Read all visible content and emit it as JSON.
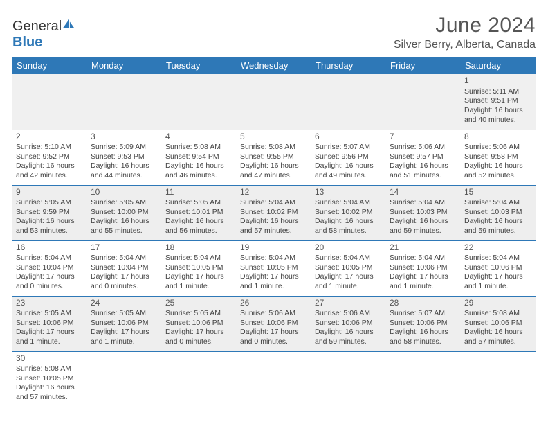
{
  "logo": {
    "word1": "General",
    "word2": "Blue"
  },
  "title": "June 2024",
  "location": "Silver Berry, Alberta, Canada",
  "header_bg": "#2e78b7",
  "header_fg": "#ffffff",
  "shade_bg": "#eeeeee",
  "border_color": "#2e78b7",
  "days": [
    "Sunday",
    "Monday",
    "Tuesday",
    "Wednesday",
    "Thursday",
    "Friday",
    "Saturday"
  ],
  "weeks": [
    [
      null,
      null,
      null,
      null,
      null,
      null,
      {
        "n": "1",
        "sr": "Sunrise: 5:11 AM",
        "ss": "Sunset: 9:51 PM",
        "d1": "Daylight: 16 hours",
        "d2": "and 40 minutes."
      }
    ],
    [
      {
        "n": "2",
        "sr": "Sunrise: 5:10 AM",
        "ss": "Sunset: 9:52 PM",
        "d1": "Daylight: 16 hours",
        "d2": "and 42 minutes."
      },
      {
        "n": "3",
        "sr": "Sunrise: 5:09 AM",
        "ss": "Sunset: 9:53 PM",
        "d1": "Daylight: 16 hours",
        "d2": "and 44 minutes."
      },
      {
        "n": "4",
        "sr": "Sunrise: 5:08 AM",
        "ss": "Sunset: 9:54 PM",
        "d1": "Daylight: 16 hours",
        "d2": "and 46 minutes."
      },
      {
        "n": "5",
        "sr": "Sunrise: 5:08 AM",
        "ss": "Sunset: 9:55 PM",
        "d1": "Daylight: 16 hours",
        "d2": "and 47 minutes."
      },
      {
        "n": "6",
        "sr": "Sunrise: 5:07 AM",
        "ss": "Sunset: 9:56 PM",
        "d1": "Daylight: 16 hours",
        "d2": "and 49 minutes."
      },
      {
        "n": "7",
        "sr": "Sunrise: 5:06 AM",
        "ss": "Sunset: 9:57 PM",
        "d1": "Daylight: 16 hours",
        "d2": "and 51 minutes."
      },
      {
        "n": "8",
        "sr": "Sunrise: 5:06 AM",
        "ss": "Sunset: 9:58 PM",
        "d1": "Daylight: 16 hours",
        "d2": "and 52 minutes."
      }
    ],
    [
      {
        "n": "9",
        "sr": "Sunrise: 5:05 AM",
        "ss": "Sunset: 9:59 PM",
        "d1": "Daylight: 16 hours",
        "d2": "and 53 minutes."
      },
      {
        "n": "10",
        "sr": "Sunrise: 5:05 AM",
        "ss": "Sunset: 10:00 PM",
        "d1": "Daylight: 16 hours",
        "d2": "and 55 minutes."
      },
      {
        "n": "11",
        "sr": "Sunrise: 5:05 AM",
        "ss": "Sunset: 10:01 PM",
        "d1": "Daylight: 16 hours",
        "d2": "and 56 minutes."
      },
      {
        "n": "12",
        "sr": "Sunrise: 5:04 AM",
        "ss": "Sunset: 10:02 PM",
        "d1": "Daylight: 16 hours",
        "d2": "and 57 minutes."
      },
      {
        "n": "13",
        "sr": "Sunrise: 5:04 AM",
        "ss": "Sunset: 10:02 PM",
        "d1": "Daylight: 16 hours",
        "d2": "and 58 minutes."
      },
      {
        "n": "14",
        "sr": "Sunrise: 5:04 AM",
        "ss": "Sunset: 10:03 PM",
        "d1": "Daylight: 16 hours",
        "d2": "and 59 minutes."
      },
      {
        "n": "15",
        "sr": "Sunrise: 5:04 AM",
        "ss": "Sunset: 10:03 PM",
        "d1": "Daylight: 16 hours",
        "d2": "and 59 minutes."
      }
    ],
    [
      {
        "n": "16",
        "sr": "Sunrise: 5:04 AM",
        "ss": "Sunset: 10:04 PM",
        "d1": "Daylight: 17 hours",
        "d2": "and 0 minutes."
      },
      {
        "n": "17",
        "sr": "Sunrise: 5:04 AM",
        "ss": "Sunset: 10:04 PM",
        "d1": "Daylight: 17 hours",
        "d2": "and 0 minutes."
      },
      {
        "n": "18",
        "sr": "Sunrise: 5:04 AM",
        "ss": "Sunset: 10:05 PM",
        "d1": "Daylight: 17 hours",
        "d2": "and 1 minute."
      },
      {
        "n": "19",
        "sr": "Sunrise: 5:04 AM",
        "ss": "Sunset: 10:05 PM",
        "d1": "Daylight: 17 hours",
        "d2": "and 1 minute."
      },
      {
        "n": "20",
        "sr": "Sunrise: 5:04 AM",
        "ss": "Sunset: 10:05 PM",
        "d1": "Daylight: 17 hours",
        "d2": "and 1 minute."
      },
      {
        "n": "21",
        "sr": "Sunrise: 5:04 AM",
        "ss": "Sunset: 10:06 PM",
        "d1": "Daylight: 17 hours",
        "d2": "and 1 minute."
      },
      {
        "n": "22",
        "sr": "Sunrise: 5:04 AM",
        "ss": "Sunset: 10:06 PM",
        "d1": "Daylight: 17 hours",
        "d2": "and 1 minute."
      }
    ],
    [
      {
        "n": "23",
        "sr": "Sunrise: 5:05 AM",
        "ss": "Sunset: 10:06 PM",
        "d1": "Daylight: 17 hours",
        "d2": "and 1 minute."
      },
      {
        "n": "24",
        "sr": "Sunrise: 5:05 AM",
        "ss": "Sunset: 10:06 PM",
        "d1": "Daylight: 17 hours",
        "d2": "and 1 minute."
      },
      {
        "n": "25",
        "sr": "Sunrise: 5:05 AM",
        "ss": "Sunset: 10:06 PM",
        "d1": "Daylight: 17 hours",
        "d2": "and 0 minutes."
      },
      {
        "n": "26",
        "sr": "Sunrise: 5:06 AM",
        "ss": "Sunset: 10:06 PM",
        "d1": "Daylight: 17 hours",
        "d2": "and 0 minutes."
      },
      {
        "n": "27",
        "sr": "Sunrise: 5:06 AM",
        "ss": "Sunset: 10:06 PM",
        "d1": "Daylight: 16 hours",
        "d2": "and 59 minutes."
      },
      {
        "n": "28",
        "sr": "Sunrise: 5:07 AM",
        "ss": "Sunset: 10:06 PM",
        "d1": "Daylight: 16 hours",
        "d2": "and 58 minutes."
      },
      {
        "n": "29",
        "sr": "Sunrise: 5:08 AM",
        "ss": "Sunset: 10:06 PM",
        "d1": "Daylight: 16 hours",
        "d2": "and 57 minutes."
      }
    ],
    [
      {
        "n": "30",
        "sr": "Sunrise: 5:08 AM",
        "ss": "Sunset: 10:05 PM",
        "d1": "Daylight: 16 hours",
        "d2": "and 57 minutes."
      },
      null,
      null,
      null,
      null,
      null,
      null
    ]
  ]
}
